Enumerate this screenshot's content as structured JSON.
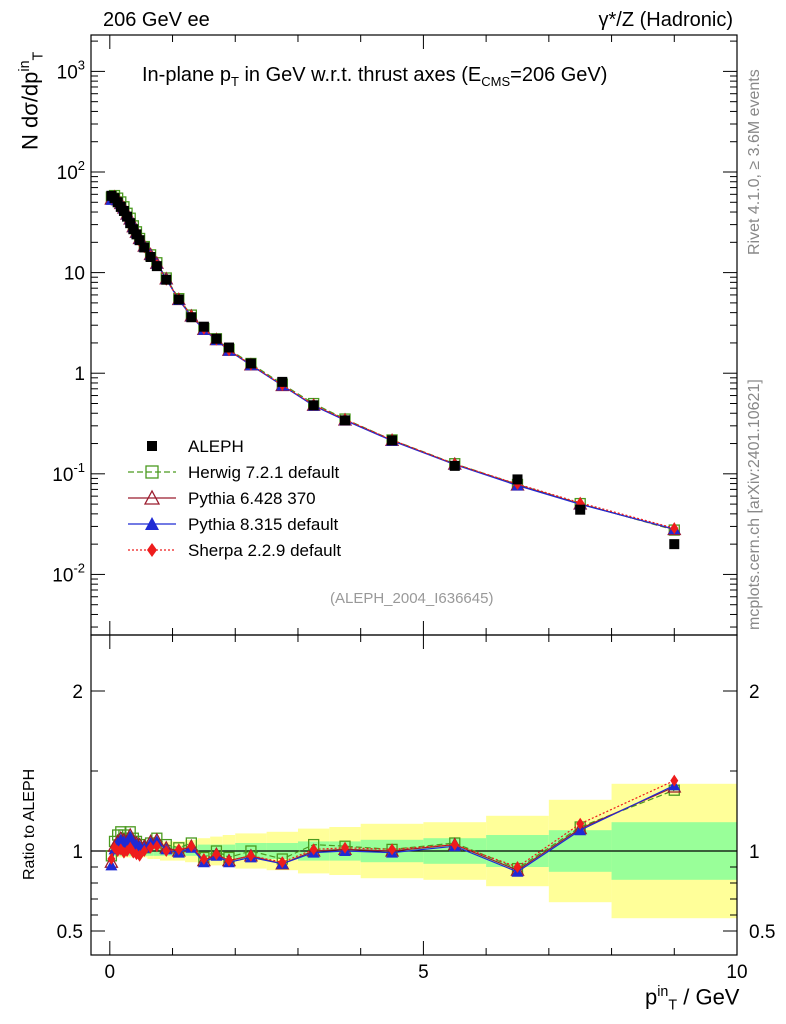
{
  "header": {
    "left": "206 GeV ee",
    "right": "γ*/Z (Hadronic)"
  },
  "side_labels": {
    "version": "Rivet 4.1.0, ≥ 3.6M events",
    "site": "mcplots.cern.ch [arXiv:2401.10621]"
  },
  "chart_data": {
    "type": "scatter",
    "title_parts": {
      "pre": "In-plane p",
      "sub": "T",
      "mid": " in GeV w.r.t. thrust axes (E",
      "sub2": "CMS",
      "post": "=206 GeV)"
    },
    "analysis_tag": "(ALEPH_2004_I636645)",
    "ylabel_parts": {
      "pre": "N  dσ/dp",
      "sup": "in",
      "sub": "T"
    },
    "xlabel_parts": {
      "pre": "p",
      "sup": "in",
      "sub": "T",
      "post": " / GeV"
    },
    "ratio_ylabel": "Ratio to ALEPH",
    "xlim": [
      -0.3,
      10.0
    ],
    "ylim_log": [
      0.0025,
      2300
    ],
    "ratio_ylim": [
      0.35,
      2.35
    ],
    "x_ticks": [
      "0",
      "5",
      "10"
    ],
    "y_ticks": [
      "10-2",
      "10-1",
      "1",
      "10",
      "102",
      "103"
    ],
    "ratio_ticks": [
      "0.5",
      "1",
      "2"
    ],
    "x": [
      0.025,
      0.075,
      0.125,
      0.175,
      0.225,
      0.275,
      0.325,
      0.375,
      0.425,
      0.475,
      0.55,
      0.65,
      0.75,
      0.9,
      1.1,
      1.3,
      1.5,
      1.7,
      1.9,
      2.25,
      2.75,
      3.25,
      3.75,
      4.5,
      5.5,
      6.5,
      7.5,
      9.0
    ],
    "band_edges": [
      0.0,
      0.05,
      0.1,
      0.15,
      0.2,
      0.25,
      0.3,
      0.35,
      0.4,
      0.45,
      0.5,
      0.6,
      0.7,
      0.8,
      1.0,
      1.2,
      1.4,
      1.6,
      1.8,
      2.0,
      2.5,
      3.0,
      3.5,
      4.0,
      5.0,
      6.0,
      7.0,
      8.0,
      10.0
    ],
    "aleph": [
      58,
      55,
      50,
      45,
      41,
      36,
      31,
      27,
      24,
      21,
      17.8,
      14.3,
      11.6,
      8.5,
      5.4,
      3.6,
      2.9,
      2.2,
      1.8,
      1.25,
      0.82,
      0.48,
      0.34,
      0.215,
      0.12,
      0.088,
      0.044,
      0.02
    ],
    "band_inner": [
      0.03,
      0.03,
      0.03,
      0.03,
      0.03,
      0.03,
      0.03,
      0.03,
      0.03,
      0.03,
      0.03,
      0.03,
      0.03,
      0.03,
      0.03,
      0.03,
      0.04,
      0.04,
      0.04,
      0.05,
      0.05,
      0.06,
      0.06,
      0.07,
      0.08,
      0.1,
      0.13,
      0.18,
      0.2
    ],
    "band_outer": [
      0.04,
      0.04,
      0.04,
      0.04,
      0.04,
      0.04,
      0.04,
      0.04,
      0.04,
      0.04,
      0.04,
      0.05,
      0.05,
      0.06,
      0.06,
      0.07,
      0.08,
      0.09,
      0.1,
      0.11,
      0.12,
      0.14,
      0.15,
      0.17,
      0.18,
      0.22,
      0.32,
      0.42,
      0.42
    ],
    "series": [
      {
        "name": "Herwig 7.2.1 default",
        "color": "#4a9a1f",
        "dash": "6,3",
        "marker": "open-square",
        "ratio": [
          0.97,
          1.06,
          1.1,
          1.12,
          1.1,
          1.08,
          1.12,
          1.08,
          1.06,
          1.04,
          1.02,
          1.05,
          1.08,
          1.04,
          1.02,
          1.05,
          0.96,
          1.0,
          0.96,
          1.0,
          0.95,
          1.04,
          1.03,
          1.01,
          1.05,
          0.89,
          1.15,
          1.38
        ]
      },
      {
        "name": "Pythia 6.428 370",
        "color": "#9b1c2e",
        "dash": "",
        "marker": "open-triangle",
        "ratio": [
          0.93,
          1.03,
          1.06,
          1.08,
          1.07,
          1.06,
          1.1,
          1.06,
          1.05,
          1.04,
          1.03,
          1.06,
          1.07,
          1.02,
          1.0,
          1.03,
          0.94,
          0.98,
          0.94,
          0.97,
          0.92,
          1.0,
          1.01,
          1.0,
          1.04,
          0.88,
          1.14,
          1.4
        ]
      },
      {
        "name": "Pythia 8.315 default",
        "color": "#1f2ad4",
        "dash": "",
        "marker": "filled-triangle",
        "ratio": [
          0.91,
          1.01,
          1.05,
          1.07,
          1.06,
          1.05,
          1.09,
          1.05,
          1.04,
          1.03,
          1.02,
          1.05,
          1.06,
          1.01,
          0.99,
          1.02,
          0.93,
          0.97,
          0.93,
          0.96,
          0.92,
          0.99,
          1.0,
          0.99,
          1.03,
          0.87,
          1.13,
          1.41
        ]
      },
      {
        "name": "Sherpa 2.2.9 default",
        "color": "#ee1c1c",
        "dash": "2,2",
        "marker": "filled-diamond",
        "ratio": [
          0.95,
          1.02,
          1.0,
          1.01,
          0.99,
          1.0,
          1.02,
          0.99,
          0.98,
          0.97,
          1.0,
          1.02,
          1.03,
          1.0,
          1.01,
          1.03,
          0.95,
          0.98,
          0.94,
          0.97,
          0.93,
          1.01,
          1.02,
          1.01,
          1.04,
          0.9,
          1.17,
          1.44
        ]
      }
    ],
    "legend_data_label": "ALEPH",
    "legend_position": "lower-left"
  }
}
